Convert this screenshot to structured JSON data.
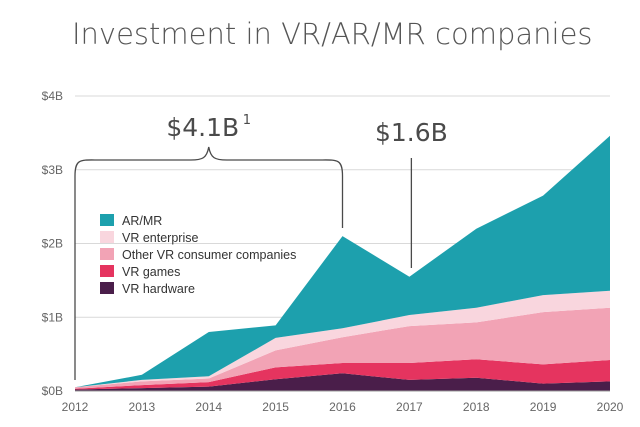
{
  "chart_data": {
    "type": "area",
    "stacked": true,
    "title": "Investment in VR/AR/MR companies",
    "xlabel": "",
    "ylabel": "",
    "categories": [
      "2012",
      "2013",
      "2014",
      "2015",
      "2016",
      "2017",
      "2018",
      "2019",
      "2020"
    ],
    "x": [
      2012,
      2013,
      2014,
      2015,
      2016,
      2017,
      2018,
      2019,
      2020
    ],
    "ylim": [
      0,
      4
    ],
    "yticks": [
      0,
      1,
      2,
      3,
      4
    ],
    "ytick_labels": [
      "$0B",
      "$1B",
      "$2B",
      "$3B",
      "$4B"
    ],
    "grid": true,
    "series": [
      {
        "name": "VR hardware",
        "color": "#4a1e4a",
        "values": [
          0.02,
          0.04,
          0.06,
          0.16,
          0.24,
          0.15,
          0.18,
          0.1,
          0.13
        ]
      },
      {
        "name": "VR games",
        "color": "#e5345f",
        "values": [
          0.01,
          0.04,
          0.06,
          0.16,
          0.14,
          0.23,
          0.25,
          0.26,
          0.29
        ]
      },
      {
        "name": "Other VR consumer companies",
        "color": "#f2a3b5",
        "values": [
          0.02,
          0.05,
          0.05,
          0.23,
          0.35,
          0.5,
          0.5,
          0.71,
          0.71
        ]
      },
      {
        "name": "VR enterprise",
        "color": "#f9d6de",
        "values": [
          0.0,
          0.02,
          0.03,
          0.17,
          0.12,
          0.15,
          0.2,
          0.23,
          0.23
        ]
      },
      {
        "name": "AR/MR",
        "color": "#1da0ad",
        "values": [
          0.0,
          0.07,
          0.6,
          0.17,
          1.25,
          0.52,
          1.07,
          1.35,
          2.1
        ]
      }
    ],
    "legend": {
      "placement": "left",
      "order": [
        "AR/MR",
        "VR enterprise",
        "Other VR consumer companies",
        "VR games",
        "VR hardware"
      ]
    },
    "annotations": [
      {
        "text": "$4.1B",
        "superscript": "1",
        "span": [
          2012,
          2016
        ],
        "style": "brace"
      },
      {
        "text": "$1.6B",
        "at": 2017,
        "style": "line"
      }
    ]
  }
}
